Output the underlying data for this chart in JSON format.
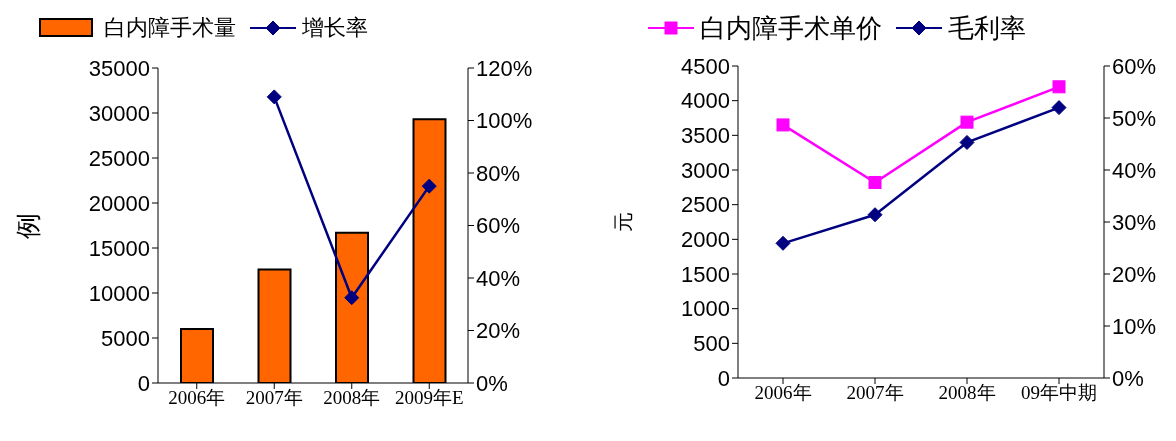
{
  "chart_data": [
    {
      "type": "bar",
      "ylabel": "例",
      "categories": [
        "2006年",
        "2007年",
        "2008年",
        "2009年E"
      ],
      "series": [
        {
          "name": "白内障手术量",
          "color": "#ff6600",
          "values": [
            6000,
            12600,
            16700,
            29300
          ]
        },
        {
          "name": "增长率",
          "type": "line",
          "axis": "y2",
          "color": "#000080",
          "marker": "diamond",
          "values": [
            null,
            109,
            32.5,
            75
          ]
        }
      ],
      "ylim": [
        0,
        35000
      ],
      "yticks": [
        0,
        5000,
        10000,
        15000,
        20000,
        25000,
        30000,
        35000
      ],
      "y2lim": [
        0,
        120
      ],
      "y2ticks": [
        {
          "value": 0,
          "label": "0%"
        },
        {
          "value": 20,
          "label": "20%"
        },
        {
          "value": 40,
          "label": "40%"
        },
        {
          "value": 60,
          "label": "60%"
        },
        {
          "value": 80,
          "label": "80%"
        },
        {
          "value": 100,
          "label": "100%"
        },
        {
          "value": 120,
          "label": "120%"
        }
      ],
      "legend": "top",
      "grid": false
    },
    {
      "type": "line",
      "ylabel": "元",
      "categories": [
        "2006年",
        "2007年",
        "2008年",
        "09年中期"
      ],
      "series": [
        {
          "name": "白内障手术单价",
          "color": "#ff00ff",
          "marker": "square",
          "values": [
            3650,
            2820,
            3690,
            4200
          ]
        },
        {
          "name": "毛利率",
          "axis": "y2",
          "color": "#000080",
          "marker": "diamond",
          "values": [
            25.9,
            31.4,
            45.3,
            52
          ]
        }
      ],
      "ylim": [
        0,
        4500
      ],
      "yticks": [
        0,
        500,
        1000,
        1500,
        2000,
        2500,
        3000,
        3500,
        4000,
        4500
      ],
      "y2lim": [
        0,
        60
      ],
      "y2ticks": [
        {
          "value": 0,
          "label": "0%"
        },
        {
          "value": 10,
          "label": "10%"
        },
        {
          "value": 20,
          "label": "20%"
        },
        {
          "value": 30,
          "label": "30%"
        },
        {
          "value": 40,
          "label": "40%"
        },
        {
          "value": 50,
          "label": "50%"
        },
        {
          "value": 60,
          "label": "60%"
        }
      ],
      "legend": "top",
      "grid": false
    }
  ]
}
